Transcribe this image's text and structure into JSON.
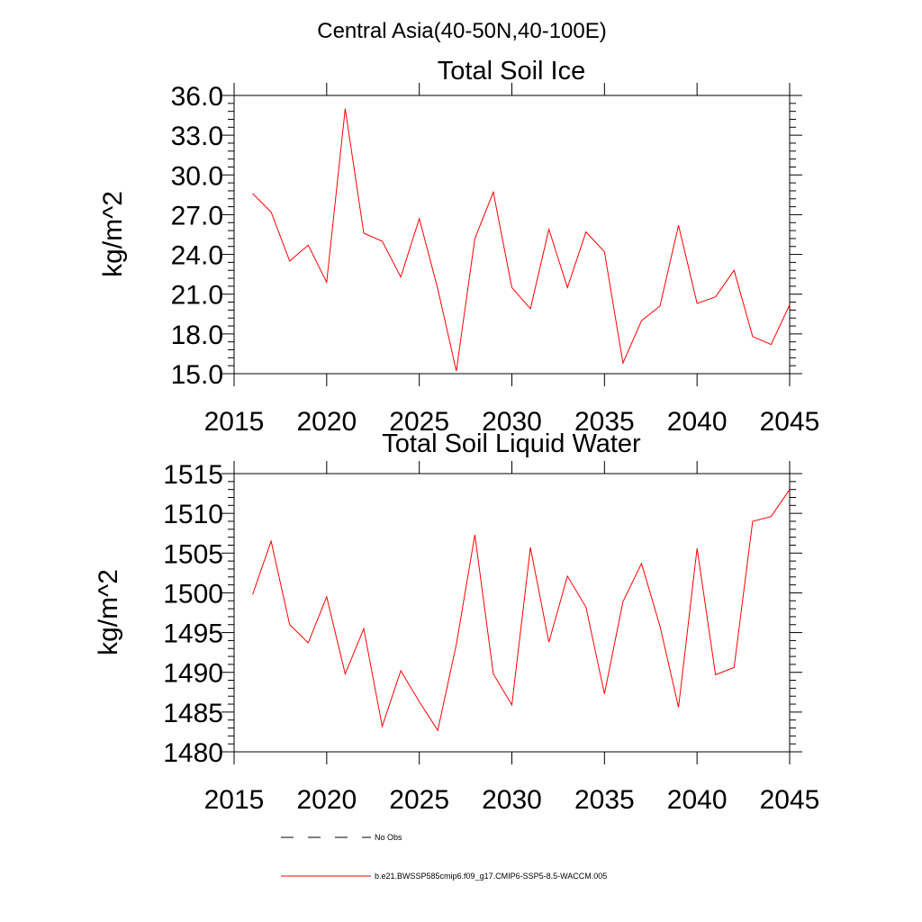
{
  "figure": {
    "suptitle": "Central Asia(40-50N,40-100E)"
  },
  "legend": {
    "entries": [
      {
        "label": "No Obs",
        "color": "#000000",
        "style": "dashed"
      },
      {
        "label": "b.e21.BWSSP585cmip6.f09_g17.CMIP6-SSP5-8.5-WACCM.005",
        "color": "#ff0000",
        "style": "solid"
      }
    ]
  },
  "chart_data": [
    {
      "type": "line",
      "title": "Total Soil Ice",
      "xlabel": "",
      "ylabel": "kg/m^2",
      "xlim": [
        2015,
        2045
      ],
      "ylim": [
        15,
        36
      ],
      "xticks": [
        2015,
        2020,
        2025,
        2030,
        2035,
        2040,
        2045
      ],
      "xtick_labels": [
        "2015",
        "2020",
        "2025",
        "2030",
        "2035",
        "2040",
        "2045"
      ],
      "yticks": [
        15,
        18,
        21,
        24,
        27,
        30,
        33,
        36
      ],
      "ytick_labels": [
        "15.0",
        "18.0",
        "21.0",
        "24.0",
        "27.0",
        "30.0",
        "33.0",
        "36.0"
      ],
      "grid": false,
      "series": [
        {
          "name": "b.e21.BWSSP585cmip6.f09_g17.CMIP6-SSP5-8.5-WACCM.005",
          "color": "#ff0000",
          "x": [
            2016,
            2017,
            2018,
            2019,
            2020,
            2021,
            2022,
            2023,
            2024,
            2025,
            2026,
            2027,
            2028,
            2029,
            2030,
            2031,
            2032,
            2033,
            2034,
            2035,
            2036,
            2037,
            2038,
            2039,
            2040,
            2041,
            2042,
            2043,
            2044,
            2045
          ],
          "values": [
            28.6,
            27.2,
            23.5,
            24.7,
            21.9,
            35.0,
            25.6,
            25.0,
            22.3,
            26.7,
            21.4,
            15.2,
            25.2,
            28.7,
            21.5,
            19.9,
            25.9,
            21.5,
            25.7,
            24.2,
            15.8,
            19.0,
            20.1,
            26.2,
            20.3,
            20.8,
            22.8,
            17.8,
            17.2,
            20.2
          ]
        }
      ]
    },
    {
      "type": "line",
      "title": "Total Soil Liquid Water",
      "xlabel": "",
      "ylabel": "kg/m^2",
      "xlim": [
        2015,
        2045
      ],
      "ylim": [
        1480,
        1515
      ],
      "xticks": [
        2015,
        2020,
        2025,
        2030,
        2035,
        2040,
        2045
      ],
      "xtick_labels": [
        "2015",
        "2020",
        "2025",
        "2030",
        "2035",
        "2040",
        "2045"
      ],
      "yticks": [
        1480,
        1485,
        1490,
        1495,
        1500,
        1505,
        1510,
        1515
      ],
      "ytick_labels": [
        "1480",
        "1485",
        "1490",
        "1495",
        "1500",
        "1505",
        "1510",
        "1515"
      ],
      "grid": false,
      "series": [
        {
          "name": "b.e21.BWSSP585cmip6.f09_g17.CMIP6-SSP5-8.5-WACCM.005",
          "color": "#ff0000",
          "x": [
            2016,
            2017,
            2018,
            2019,
            2020,
            2021,
            2022,
            2023,
            2024,
            2025,
            2026,
            2027,
            2028,
            2029,
            2030,
            2031,
            2032,
            2033,
            2034,
            2035,
            2036,
            2037,
            2038,
            2039,
            2040,
            2041,
            2042,
            2043,
            2044,
            2045
          ],
          "values": [
            1499.8,
            1506.5,
            1496.0,
            1493.7,
            1499.5,
            1489.8,
            1495.5,
            1483.2,
            1490.2,
            1486.3,
            1482.7,
            1493.5,
            1507.3,
            1489.8,
            1485.9,
            1505.7,
            1493.8,
            1502.1,
            1498.2,
            1487.3,
            1498.9,
            1503.7,
            1495.8,
            1485.6,
            1505.6,
            1489.7,
            1490.6,
            1509.0,
            1509.6,
            1513.0
          ]
        }
      ]
    }
  ]
}
